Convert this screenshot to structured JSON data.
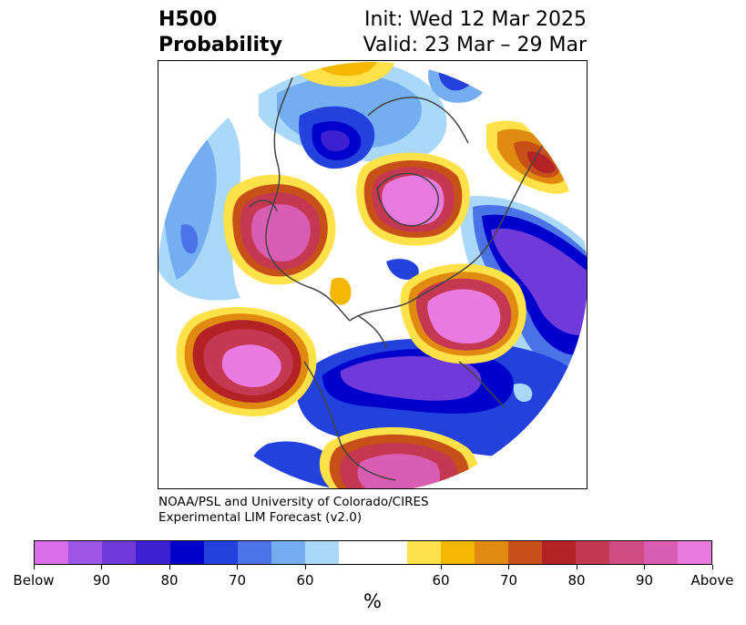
{
  "title": {
    "left_line1": "H500",
    "left_line2": "Probability",
    "right_line1": "Init: Wed 12 Mar 2025",
    "right_line2": "Valid: 23 Mar – 29 Mar"
  },
  "credit": {
    "line1": "NOAA/PSL and University of Colorado/CIRES",
    "line2": "Experimental LIM Forecast (v2.0)"
  },
  "colorbar": {
    "unit": "%",
    "tick_labels": [
      "Below",
      "90",
      "80",
      "70",
      "60",
      "60",
      "70",
      "80",
      "90",
      "Above"
    ],
    "colors": [
      "#d86ee8",
      "#9d55e3",
      "#6f3ad9",
      "#3d20d2",
      "#0000cd",
      "#2241dd",
      "#4c72e8",
      "#74aef1",
      "#aad8f9",
      "#ffffff",
      "#ffe24a",
      "#f5b800",
      "#e08a10",
      "#c65018",
      "#b32225",
      "#c43852",
      "#d04c84",
      "#da5db4",
      "#e87ae0"
    ]
  },
  "map": {
    "projection": "north-polar-stereographic",
    "colors": {
      "above_high": "#e87ae0",
      "above_mid": "#c43852",
      "above_low": "#ffe24a",
      "below_high": "#6f3ad9",
      "below_mid": "#0000cd",
      "below_low": "#aad8f9",
      "coastline": "#444444"
    }
  }
}
